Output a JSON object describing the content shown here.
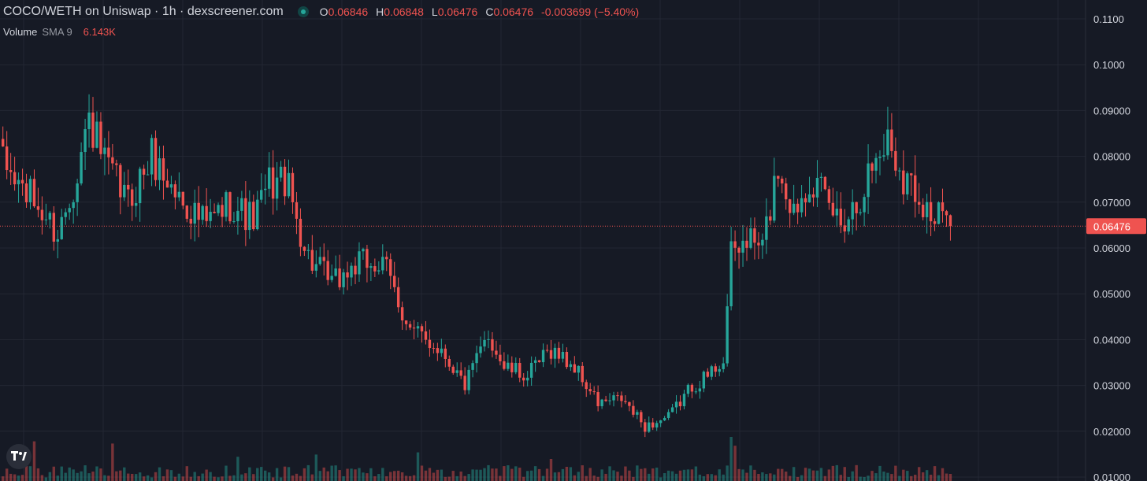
{
  "header": {
    "title": "COCO/WETH on Uniswap · 1h · dexscreener.com",
    "ohlc": {
      "o_label": "O",
      "o_value": "0.06846",
      "h_label": "H",
      "h_value": "0.06848",
      "l_label": "L",
      "l_value": "0.06476",
      "c_label": "C",
      "c_value": "0.06476",
      "change": "-0.003699 (−5.40%)"
    },
    "volume_label": "Volume",
    "volume_sma": "SMA 9",
    "volume_value": "6.143K"
  },
  "colors": {
    "background": "#161a25",
    "grid": "#232733",
    "up": "#26a69a",
    "down": "#ef5350",
    "text": "#d1d4dc",
    "price_line": "#ef5350"
  },
  "icons": {
    "status": "status-dot-icon",
    "logo": "tradingview-logo-icon"
  },
  "chart_data": {
    "type": "candlestick",
    "title": "COCO/WETH on Uniswap · 1h · dexscreener.com",
    "y_axis": {
      "ticks": [
        "0.1100",
        "0.1000",
        "0.09000",
        "0.08000",
        "0.07000",
        "0.06000",
        "0.05000",
        "0.04000",
        "0.03000",
        "0.02000",
        "0.01000"
      ],
      "range": [
        0.01,
        0.11
      ]
    },
    "current_price_label": "0.06476",
    "current_price": 0.06476,
    "grid": true,
    "anchors": [
      [
        0,
        0.078
      ],
      [
        8,
        0.07
      ],
      [
        14,
        0.063
      ],
      [
        18,
        0.074
      ],
      [
        22,
        0.088
      ],
      [
        26,
        0.078
      ],
      [
        32,
        0.07
      ],
      [
        38,
        0.08
      ],
      [
        44,
        0.072
      ],
      [
        52,
        0.065
      ],
      [
        58,
        0.07
      ],
      [
        64,
        0.066
      ],
      [
        68,
        0.074
      ],
      [
        72,
        0.075
      ],
      [
        78,
        0.058
      ],
      [
        84,
        0.052
      ],
      [
        90,
        0.056
      ],
      [
        94,
        0.057
      ],
      [
        98,
        0.055
      ],
      [
        104,
        0.042
      ],
      [
        112,
        0.038
      ],
      [
        118,
        0.03
      ],
      [
        124,
        0.041
      ],
      [
        128,
        0.034
      ],
      [
        134,
        0.032
      ],
      [
        140,
        0.038
      ],
      [
        146,
        0.034
      ],
      [
        152,
        0.026
      ],
      [
        158,
        0.027
      ],
      [
        164,
        0.021
      ],
      [
        170,
        0.023
      ],
      [
        176,
        0.03
      ],
      [
        180,
        0.032
      ],
      [
        184,
        0.036
      ],
      [
        186,
        0.058
      ],
      [
        190,
        0.062
      ],
      [
        194,
        0.06
      ],
      [
        198,
        0.078
      ],
      [
        202,
        0.068
      ],
      [
        206,
        0.076
      ],
      [
        210,
        0.07
      ],
      [
        214,
        0.066
      ],
      [
        218,
        0.07
      ],
      [
        222,
        0.078
      ],
      [
        226,
        0.084
      ],
      [
        230,
        0.076
      ],
      [
        234,
        0.072
      ],
      [
        238,
        0.066
      ],
      [
        240,
        0.068
      ],
      [
        242,
        0.06476
      ]
    ],
    "vol_spikes": [
      [
        8,
        0.9
      ],
      [
        28,
        0.85
      ],
      [
        186,
        1.0
      ],
      [
        187,
        0.8
      ],
      [
        106,
        0.65
      ],
      [
        80,
        0.6
      ],
      [
        140,
        0.5
      ],
      [
        60,
        0.55
      ]
    ]
  }
}
